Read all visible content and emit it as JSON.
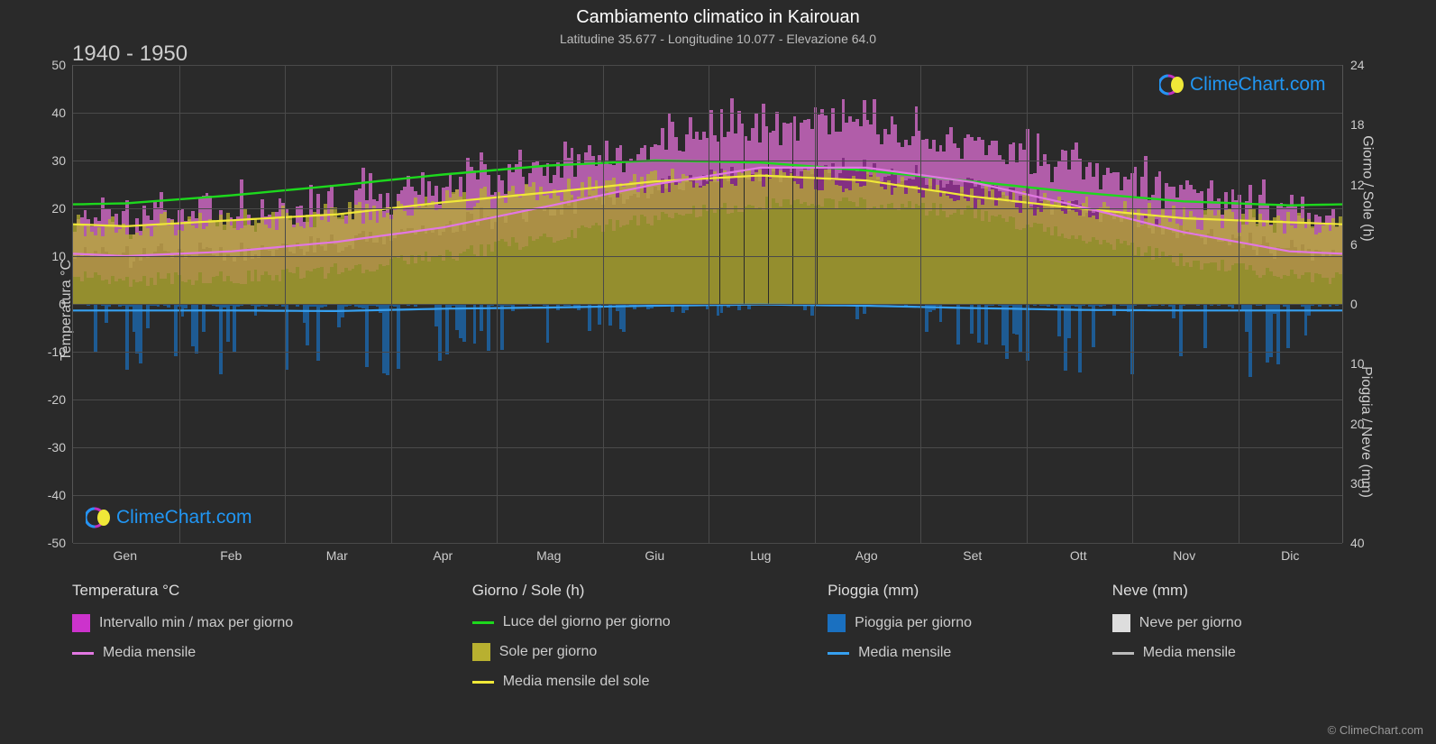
{
  "title": "Cambiamento climatico in Kairouan",
  "subtitle": "Latitudine 35.677 - Longitudine 10.077 - Elevazione 64.0",
  "period": "1940 - 1950",
  "logo_text": "ClimeChart.com",
  "copyright": "© ClimeChart.com",
  "colors": {
    "background": "#2a2a2a",
    "grid": "#4a4a4a",
    "text": "#cccccc",
    "title": "#ffffff",
    "temp_range_fill": "#cc33cc",
    "temp_range_fill_inner": "#e896d8",
    "temp_mean_line": "#e277e2",
    "daylight_line": "#1dd81d",
    "sun_fill": "#b8b030",
    "sun_mean_line": "#f0e838",
    "rain_fill": "#1a70c0",
    "rain_mean_line": "#36a0f0",
    "snow_fill": "#dddddd",
    "snow_mean_line": "#bbbbbb",
    "logo_blue": "#2196f3"
  },
  "axes": {
    "left_title": "Temperatura °C",
    "right_title_top": "Giorno / Sole (h)",
    "right_title_bot": "Pioggia / Neve (mm)",
    "left_min": -50,
    "left_max": 50,
    "left_step": 10,
    "right_top_min": 0,
    "right_top_max": 24,
    "right_top_step": 6,
    "right_bot_min": 0,
    "right_bot_max": 40,
    "right_bot_step": 10,
    "months": [
      "Gen",
      "Feb",
      "Mar",
      "Apr",
      "Mag",
      "Giu",
      "Lug",
      "Ago",
      "Set",
      "Ott",
      "Nov",
      "Dic"
    ]
  },
  "series": {
    "temp_min_monthly": [
      5,
      5.5,
      7,
      10,
      14,
      18,
      21,
      21,
      19,
      14,
      9,
      6
    ],
    "temp_max_monthly": [
      16,
      17,
      19,
      23,
      27,
      32,
      36,
      36,
      32,
      27,
      21,
      17
    ],
    "temp_mean_monthly": [
      10,
      11,
      13,
      16,
      20.5,
      25,
      28.5,
      28.5,
      25.5,
      20.5,
      15,
      11
    ],
    "daylight_monthly": [
      10.1,
      10.9,
      11.9,
      13.0,
      13.9,
      14.4,
      14.2,
      13.4,
      12.3,
      11.2,
      10.3,
      9.9
    ],
    "sun_mean_monthly": [
      7.8,
      8.4,
      9.0,
      10.2,
      11.2,
      12.3,
      12.9,
      12.4,
      10.8,
      9.6,
      8.6,
      8.2
    ],
    "rain_mean_monthly": [
      1.1,
      1.1,
      1.2,
      0.8,
      0.6,
      0.3,
      0.1,
      0.3,
      0.7,
      1.0,
      1.1,
      1.1
    ]
  },
  "legend": {
    "col1": {
      "heading": "Temperatura °C",
      "items": [
        {
          "type": "swatch",
          "color": "#cc33cc",
          "label": "Intervallo min / max per giorno"
        },
        {
          "type": "line",
          "color": "#e277e2",
          "label": "Media mensile"
        }
      ]
    },
    "col2": {
      "heading": "Giorno / Sole (h)",
      "items": [
        {
          "type": "line",
          "color": "#1dd81d",
          "label": "Luce del giorno per giorno"
        },
        {
          "type": "swatch",
          "color": "#b8b030",
          "label": "Sole per giorno"
        },
        {
          "type": "line",
          "color": "#f0e838",
          "label": "Media mensile del sole"
        }
      ]
    },
    "col3": {
      "heading": "Pioggia (mm)",
      "items": [
        {
          "type": "swatch",
          "color": "#1a70c0",
          "label": "Pioggia per giorno"
        },
        {
          "type": "line",
          "color": "#36a0f0",
          "label": "Media mensile"
        }
      ]
    },
    "col4": {
      "heading": "Neve (mm)",
      "items": [
        {
          "type": "swatch",
          "color": "#dddddd",
          "label": "Neve per giorno"
        },
        {
          "type": "line",
          "color": "#bbbbbb",
          "label": "Media mensile"
        }
      ]
    }
  }
}
